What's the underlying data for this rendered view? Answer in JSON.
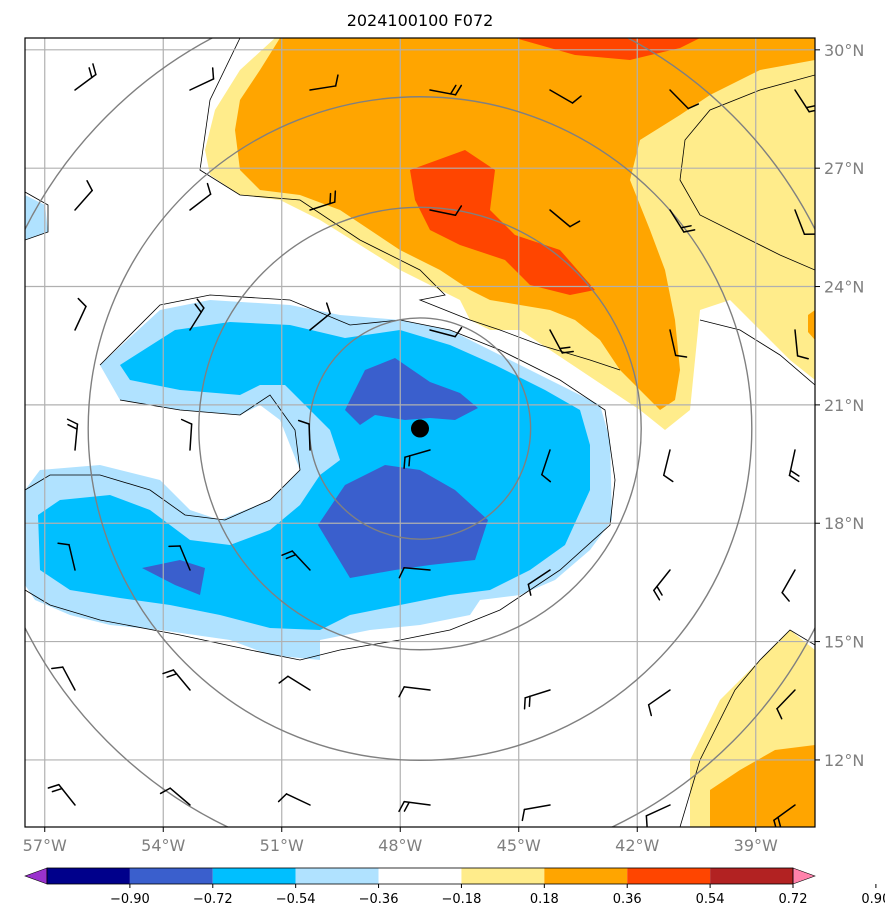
{
  "title": "2024100100 F072",
  "map": {
    "lon_range": [
      -57.5,
      -37.5
    ],
    "lat_range": [
      10.3,
      30.3
    ],
    "lon_ticks": [
      {
        "value": -57,
        "label": "57°W"
      },
      {
        "value": -54,
        "label": "54°W"
      },
      {
        "value": -51,
        "label": "51°W"
      },
      {
        "value": -48,
        "label": "48°W"
      },
      {
        "value": -45,
        "label": "45°W"
      },
      {
        "value": -42,
        "label": "42°W"
      },
      {
        "value": -39,
        "label": "39°W"
      }
    ],
    "lat_ticks": [
      {
        "value": 30,
        "label": "30°N"
      },
      {
        "value": 27,
        "label": "27°N"
      },
      {
        "value": 24,
        "label": "24°N"
      },
      {
        "value": 21,
        "label": "21°N"
      },
      {
        "value": 18,
        "label": "18°N"
      },
      {
        "value": 15,
        "label": "15°N"
      },
      {
        "value": 12,
        "label": "12°N"
      }
    ],
    "storm_center": {
      "lon": -47.5,
      "lat": 20.4
    },
    "range_rings_deg": [
      2.8,
      5.6,
      8.4,
      11.2
    ]
  },
  "colorbar": {
    "levels": [
      "−0.90",
      "−0.72",
      "−0.54",
      "−0.36",
      "−0.18",
      "0.18",
      "0.36",
      "0.54",
      "0.72",
      "0.90"
    ],
    "colors": [
      "#9a32cd",
      "#00008b",
      "#3a5fcd",
      "#00bfff",
      "#b0e2ff",
      "#ffffff",
      "#ffec8b",
      "#ffa500",
      "#ff4500",
      "#b22222",
      "#ff82ab"
    ]
  },
  "fill_colors": {
    "neg_strong": "#3a5fcd",
    "neg_mid": "#00bfff",
    "neg_weak": "#b0e2ff",
    "pos_weak": "#ffec8b",
    "pos_mid": "#ffa500",
    "pos_strong": "#ff4500"
  }
}
